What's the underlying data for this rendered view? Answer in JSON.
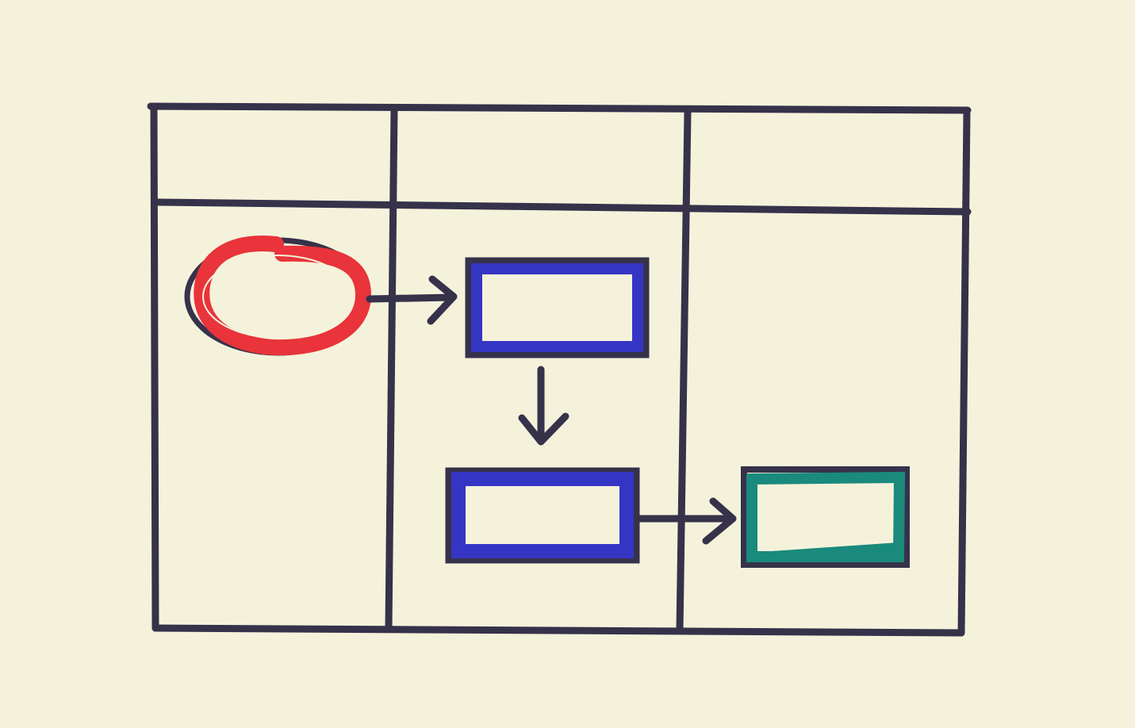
{
  "diagram": {
    "type": "swimlane-flowchart",
    "lanes": [
      {
        "id": "lane-1",
        "header": ""
      },
      {
        "id": "lane-2",
        "header": ""
      },
      {
        "id": "lane-3",
        "header": ""
      }
    ],
    "nodes": [
      {
        "id": "start",
        "shape": "ellipse",
        "lane": "lane-1",
        "label": ""
      },
      {
        "id": "process-1",
        "shape": "rectangle",
        "lane": "lane-2",
        "label": ""
      },
      {
        "id": "process-2",
        "shape": "rectangle",
        "lane": "lane-2",
        "label": ""
      },
      {
        "id": "end",
        "shape": "rectangle",
        "lane": "lane-3",
        "label": ""
      }
    ],
    "edges": [
      {
        "from": "start",
        "to": "process-1"
      },
      {
        "from": "process-1",
        "to": "process-2"
      },
      {
        "from": "process-2",
        "to": "end"
      }
    ]
  },
  "colors": {
    "background": "#f5f2dc",
    "ink": "#36324a",
    "start_node": "#e8343a",
    "process_node": "#3535c4",
    "end_node": "#1a8a7c"
  }
}
